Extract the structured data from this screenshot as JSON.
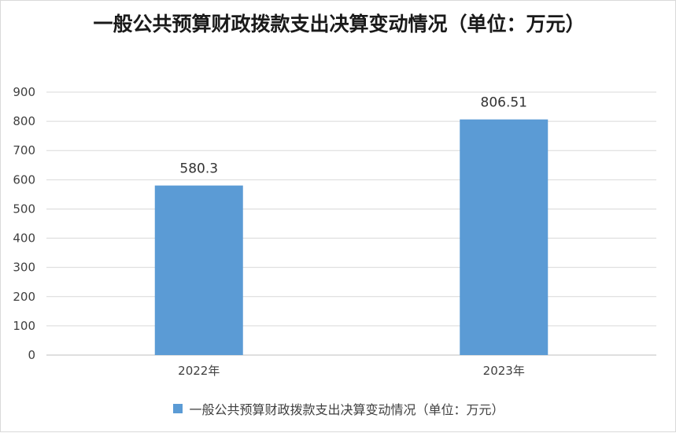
{
  "chart_data": {
    "type": "bar",
    "title": "一般公共预算财政拨款支出决算变动情况（单位：万元）",
    "categories": [
      "2022年",
      "2023年"
    ],
    "series": [
      {
        "name": "一般公共预算财政拨款支出决算变动情况（单位：万元）",
        "values": [
          580.3,
          806.51
        ],
        "labels": [
          "580.3",
          "806.51"
        ],
        "color": "#5b9bd5"
      }
    ],
    "ylim": [
      0,
      900
    ],
    "yticks": [
      0,
      100,
      200,
      300,
      400,
      500,
      600,
      700,
      800,
      900
    ],
    "grid": true,
    "legend": "bottom"
  }
}
